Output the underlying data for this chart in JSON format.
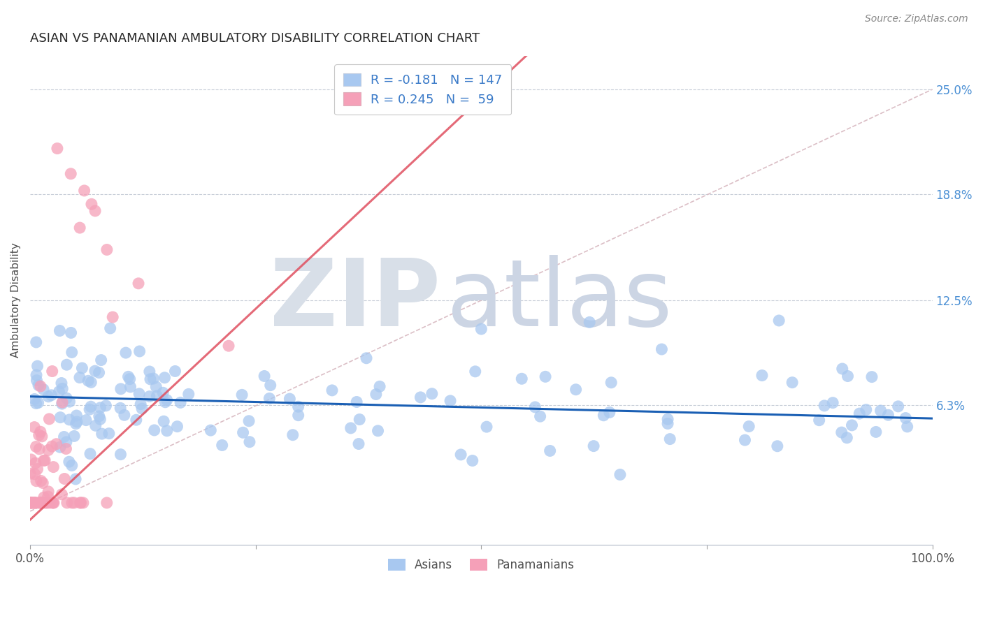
{
  "title": "ASIAN VS PANAMANIAN AMBULATORY DISABILITY CORRELATION CHART",
  "source": "Source: ZipAtlas.com",
  "ylabel": "Ambulatory Disability",
  "ytick_labels": [
    "6.3%",
    "12.5%",
    "18.8%",
    "25.0%"
  ],
  "ytick_values": [
    0.063,
    0.125,
    0.188,
    0.25
  ],
  "xlim": [
    0.0,
    1.0
  ],
  "ylim": [
    -0.02,
    0.27
  ],
  "asian_color": "#a8c8f0",
  "panamanian_color": "#f5a0b8",
  "asian_line_color": "#1a5fb4",
  "panamanian_line_color": "#e0506080",
  "panamanian_line_color_solid": "#e05060",
  "diagonal_color": "#d8b8c0",
  "watermark_zip_color": "#d8dfe8",
  "watermark_atlas_color": "#ccd5e4",
  "background_color": "#ffffff",
  "asian_R": -0.181,
  "asian_N": 147,
  "panamanian_R": 0.245,
  "panamanian_N": 59,
  "asian_intercept": 0.068,
  "asian_slope": -0.013,
  "panamanian_intercept": -0.005,
  "panamanian_slope": 0.5
}
